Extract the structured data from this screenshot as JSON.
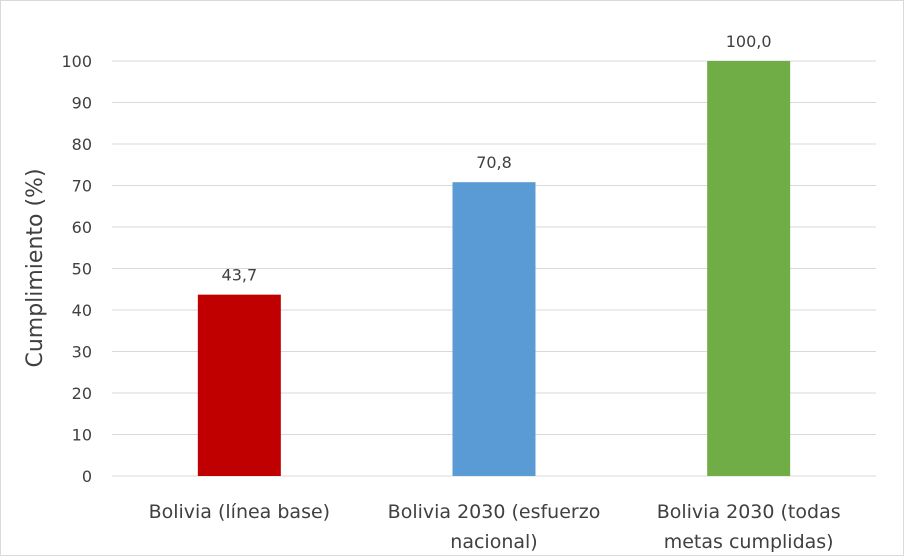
{
  "chart_data": {
    "type": "bar",
    "categories": [
      [
        "Bolivia (línea base)"
      ],
      [
        "Bolivia 2030 (esfuerzo",
        "nacional)"
      ],
      [
        "Bolivia 2030 (todas",
        "metas cumplidas)"
      ]
    ],
    "values": [
      43.7,
      70.8,
      100.0
    ],
    "data_labels": [
      "43,7",
      "70,8",
      "100,0"
    ],
    "colors": [
      "#c00000",
      "#5b9bd5",
      "#70ad47"
    ],
    "title": "",
    "xlabel": "",
    "ylabel": "Cumplimiento (%)",
    "ylim": [
      0,
      100
    ],
    "yticks": [
      0,
      10,
      20,
      30,
      40,
      50,
      60,
      70,
      80,
      90,
      100
    ],
    "grid": true,
    "legend": "none"
  }
}
